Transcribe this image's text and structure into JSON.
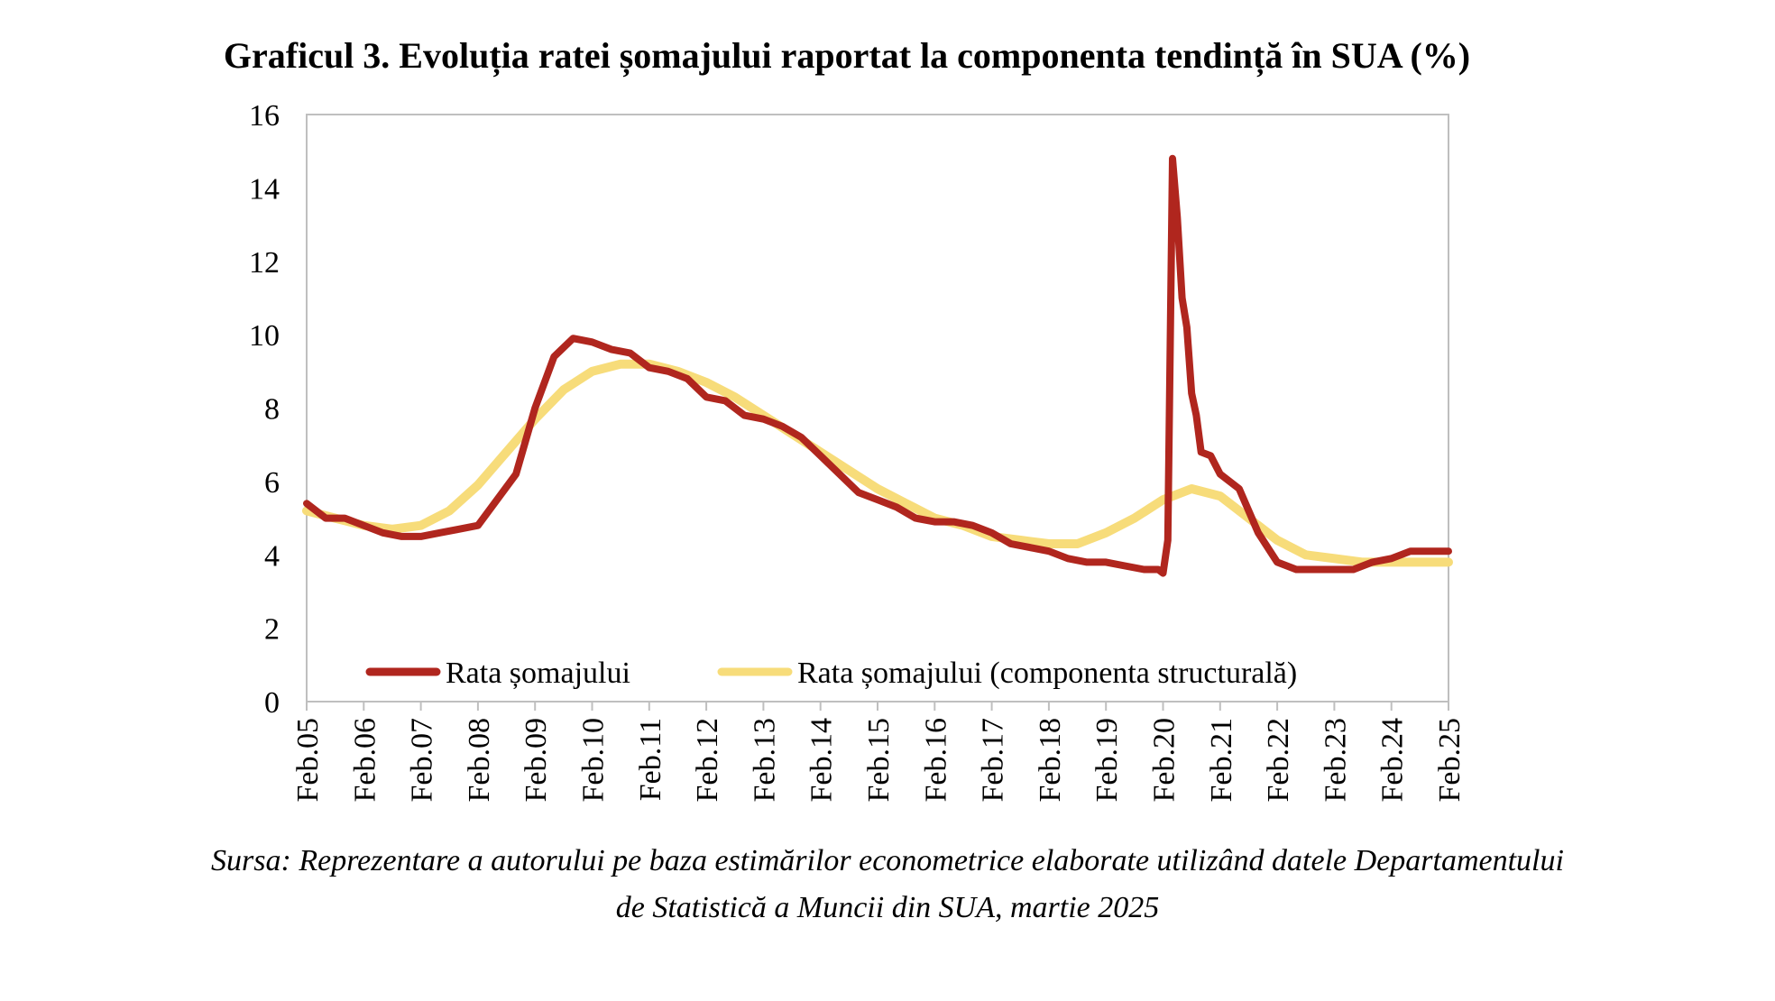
{
  "title": "Graficul 3. Evoluția ratei șomajului raportat la componenta tendință în SUA (%)",
  "source_line1": "Sursa: Reprezentare a autorului pe baza estimărilor econometrice elaborate utilizând datele Departamentului",
  "source_line2": "de Statistică a Muncii din SUA, martie 2025",
  "colors": {
    "rate": "#B0261E",
    "trend": "#F7DC7A",
    "axis": "#BFBFBF"
  },
  "chart_data": {
    "type": "line",
    "title": "Graficul 3. Evoluția ratei șomajului raportat la componenta tendință în SUA (%)",
    "xlabel": "",
    "ylabel": "",
    "ylim": [
      0,
      16
    ],
    "yticks": [
      0,
      2,
      4,
      6,
      8,
      10,
      12,
      14,
      16
    ],
    "xticks": [
      "Feb.05",
      "Feb.06",
      "Feb.07",
      "Feb.08",
      "Feb.09",
      "Feb.10",
      "Feb.11",
      "Feb.12",
      "Feb.13",
      "Feb.14",
      "Feb.15",
      "Feb.16",
      "Feb.17",
      "Feb.18",
      "Feb.19",
      "Feb.20",
      "Feb.21",
      "Feb.22",
      "Feb.23",
      "Feb.24",
      "Feb.25"
    ],
    "xrange": [
      "2005-02",
      "2025-02"
    ],
    "grid": false,
    "legend_position": "bottom",
    "series": [
      {
        "name": "Rata șomajului",
        "color": "#B0261E",
        "points": [
          [
            "2005-02",
            5.4
          ],
          [
            "2005-06",
            5.0
          ],
          [
            "2005-10",
            5.0
          ],
          [
            "2006-02",
            4.8
          ],
          [
            "2006-06",
            4.6
          ],
          [
            "2006-10",
            4.5
          ],
          [
            "2007-02",
            4.5
          ],
          [
            "2007-06",
            4.6
          ],
          [
            "2007-10",
            4.7
          ],
          [
            "2008-02",
            4.8
          ],
          [
            "2008-06",
            5.5
          ],
          [
            "2008-10",
            6.2
          ],
          [
            "2009-02",
            8.0
          ],
          [
            "2009-06",
            9.4
          ],
          [
            "2009-10",
            9.9
          ],
          [
            "2010-02",
            9.8
          ],
          [
            "2010-06",
            9.6
          ],
          [
            "2010-10",
            9.5
          ],
          [
            "2011-02",
            9.1
          ],
          [
            "2011-06",
            9.0
          ],
          [
            "2011-10",
            8.8
          ],
          [
            "2012-02",
            8.3
          ],
          [
            "2012-06",
            8.2
          ],
          [
            "2012-10",
            7.8
          ],
          [
            "2013-02",
            7.7
          ],
          [
            "2013-06",
            7.5
          ],
          [
            "2013-10",
            7.2
          ],
          [
            "2014-02",
            6.7
          ],
          [
            "2014-06",
            6.2
          ],
          [
            "2014-10",
            5.7
          ],
          [
            "2015-02",
            5.5
          ],
          [
            "2015-06",
            5.3
          ],
          [
            "2015-10",
            5.0
          ],
          [
            "2016-02",
            4.9
          ],
          [
            "2016-06",
            4.9
          ],
          [
            "2016-10",
            4.8
          ],
          [
            "2017-02",
            4.6
          ],
          [
            "2017-06",
            4.3
          ],
          [
            "2017-10",
            4.2
          ],
          [
            "2018-02",
            4.1
          ],
          [
            "2018-06",
            3.9
          ],
          [
            "2018-10",
            3.8
          ],
          [
            "2019-02",
            3.8
          ],
          [
            "2019-06",
            3.7
          ],
          [
            "2019-10",
            3.6
          ],
          [
            "2020-01",
            3.6
          ],
          [
            "2020-02",
            3.5
          ],
          [
            "2020-03",
            4.4
          ],
          [
            "2020-04",
            14.8
          ],
          [
            "2020-05",
            13.2
          ],
          [
            "2020-06",
            11.0
          ],
          [
            "2020-07",
            10.2
          ],
          [
            "2020-08",
            8.4
          ],
          [
            "2020-09",
            7.8
          ],
          [
            "2020-10",
            6.8
          ],
          [
            "2020-12",
            6.7
          ],
          [
            "2021-02",
            6.2
          ],
          [
            "2021-06",
            5.8
          ],
          [
            "2021-10",
            4.6
          ],
          [
            "2022-02",
            3.8
          ],
          [
            "2022-06",
            3.6
          ],
          [
            "2022-10",
            3.6
          ],
          [
            "2023-02",
            3.6
          ],
          [
            "2023-06",
            3.6
          ],
          [
            "2023-10",
            3.8
          ],
          [
            "2024-02",
            3.9
          ],
          [
            "2024-06",
            4.1
          ],
          [
            "2024-10",
            4.1
          ],
          [
            "2025-02",
            4.1
          ]
        ]
      },
      {
        "name": "Rata șomajului (componenta structurală)",
        "color": "#F7DC7A",
        "points": [
          [
            "2005-02",
            5.2
          ],
          [
            "2005-08",
            5.0
          ],
          [
            "2006-02",
            4.8
          ],
          [
            "2006-08",
            4.7
          ],
          [
            "2007-02",
            4.8
          ],
          [
            "2007-08",
            5.2
          ],
          [
            "2008-02",
            5.9
          ],
          [
            "2008-08",
            6.8
          ],
          [
            "2009-02",
            7.7
          ],
          [
            "2009-08",
            8.5
          ],
          [
            "2010-02",
            9.0
          ],
          [
            "2010-08",
            9.2
          ],
          [
            "2011-02",
            9.2
          ],
          [
            "2011-08",
            9.0
          ],
          [
            "2012-02",
            8.7
          ],
          [
            "2012-08",
            8.3
          ],
          [
            "2013-02",
            7.8
          ],
          [
            "2013-08",
            7.3
          ],
          [
            "2014-02",
            6.8
          ],
          [
            "2014-08",
            6.3
          ],
          [
            "2015-02",
            5.8
          ],
          [
            "2015-08",
            5.4
          ],
          [
            "2016-02",
            5.0
          ],
          [
            "2016-08",
            4.8
          ],
          [
            "2017-02",
            4.5
          ],
          [
            "2017-08",
            4.4
          ],
          [
            "2018-02",
            4.3
          ],
          [
            "2018-08",
            4.3
          ],
          [
            "2019-02",
            4.6
          ],
          [
            "2019-08",
            5.0
          ],
          [
            "2020-02",
            5.5
          ],
          [
            "2020-08",
            5.8
          ],
          [
            "2021-02",
            5.6
          ],
          [
            "2021-08",
            5.0
          ],
          [
            "2022-02",
            4.4
          ],
          [
            "2022-08",
            4.0
          ],
          [
            "2023-02",
            3.9
          ],
          [
            "2023-08",
            3.8
          ],
          [
            "2024-02",
            3.8
          ],
          [
            "2024-08",
            3.8
          ],
          [
            "2025-02",
            3.8
          ]
        ]
      }
    ]
  }
}
